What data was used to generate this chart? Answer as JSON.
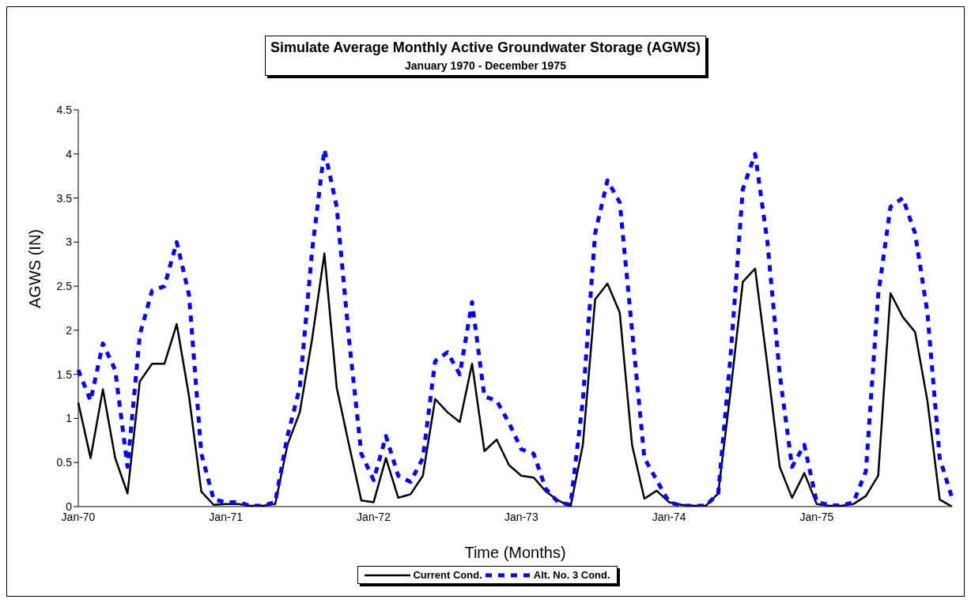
{
  "chart_data": {
    "type": "line",
    "title": "Simulate Average Monthly Active Groundwater Storage (AGWS)",
    "subtitle": "January 1970 - December 1975",
    "xlabel": "Time (Months)",
    "ylabel": "AGWS (IN)",
    "categories": [
      "Jan-70",
      null,
      null,
      null,
      null,
      null,
      null,
      null,
      null,
      null,
      null,
      null,
      "Jan-71",
      null,
      null,
      null,
      null,
      null,
      null,
      null,
      null,
      null,
      null,
      null,
      "Jan-72",
      null,
      null,
      null,
      null,
      null,
      null,
      null,
      null,
      null,
      null,
      null,
      "Jan-73",
      null,
      null,
      null,
      null,
      null,
      null,
      null,
      null,
      null,
      null,
      null,
      "Jan-74",
      null,
      null,
      null,
      null,
      null,
      null,
      null,
      null,
      null,
      null,
      null,
      "Jan-75",
      null,
      null,
      null,
      null,
      null,
      null,
      null,
      null,
      null,
      null,
      null
    ],
    "series": [
      {
        "name": "Current Cond.",
        "color": "#000000",
        "line_style": "solid",
        "values": [
          1.18,
          0.55,
          1.33,
          0.55,
          0.15,
          1.42,
          1.62,
          1.62,
          2.07,
          1.25,
          0.17,
          0.02,
          0.03,
          0.03,
          0.01,
          0.01,
          0.03,
          0.7,
          1.07,
          1.9,
          2.87,
          1.35,
          0.7,
          0.07,
          0.05,
          0.55,
          0.1,
          0.14,
          0.35,
          1.22,
          1.07,
          0.96,
          1.62,
          0.63,
          0.76,
          0.47,
          0.35,
          0.33,
          0.17,
          0.07,
          0,
          0.7,
          2.35,
          2.53,
          2.2,
          0.7,
          0.09,
          0.18,
          0.05,
          0.02,
          0.01,
          0.01,
          0.15,
          1.3,
          2.55,
          2.7,
          1.6,
          0.45,
          0.1,
          0.38,
          0.03,
          0.01,
          0.01,
          0.03,
          0.12,
          0.35,
          2.42,
          2.15,
          1.98,
          1.2,
          0.08,
          0
        ]
      },
      {
        "name": "Alt. No. 3 Cond.",
        "color": "#0000ff",
        "line_style": "dashed",
        "values": [
          1.55,
          1.2,
          1.85,
          1.55,
          0.45,
          1.95,
          2.45,
          2.5,
          3.0,
          2.4,
          0.6,
          0.08,
          0.05,
          0.05,
          0.01,
          0.01,
          0.05,
          0.8,
          1.35,
          2.9,
          4.05,
          3.4,
          1.9,
          0.6,
          0.3,
          0.8,
          0.35,
          0.28,
          0.55,
          1.65,
          1.75,
          1.5,
          2.32,
          1.25,
          1.2,
          0.95,
          0.65,
          0.6,
          0.2,
          0.05,
          0.02,
          1.2,
          3.1,
          3.7,
          3.45,
          2.0,
          0.55,
          0.3,
          0.05,
          0.01,
          0.01,
          0.01,
          0.15,
          1.7,
          3.6,
          4.0,
          3.0,
          1.5,
          0.45,
          0.7,
          0.05,
          0.02,
          0.01,
          0.05,
          0.4,
          2.4,
          3.4,
          3.5,
          3.1,
          2.2,
          0.55,
          0.1
        ]
      }
    ],
    "ylim": [
      0,
      4.5
    ],
    "yticks": [
      0,
      0.5,
      1,
      1.5,
      2,
      2.5,
      3,
      3.5,
      4,
      4.5
    ],
    "grid": false,
    "legend": "bottom",
    "marker": "none"
  }
}
